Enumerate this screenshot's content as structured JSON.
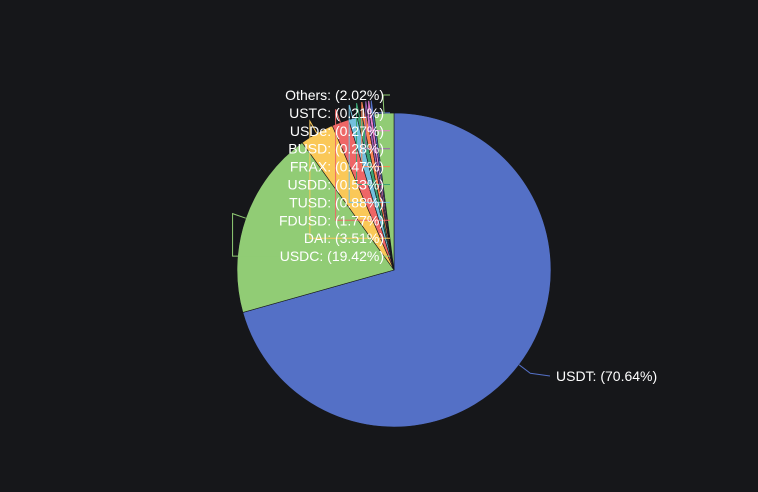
{
  "chart_data": {
    "type": "pie",
    "title": "",
    "start_angle_deg": 0,
    "direction": "clockwise",
    "slices": [
      {
        "name": "USDT",
        "value": 70.64,
        "label": "USDT: (70.64%)",
        "color": "#5470c6"
      },
      {
        "name": "USDC",
        "value": 19.42,
        "label": "USDC: (19.42%)",
        "color": "#91cc75"
      },
      {
        "name": "DAI",
        "value": 3.51,
        "label": "DAI: (3.51%)",
        "color": "#fac858"
      },
      {
        "name": "FDUSD",
        "value": 1.77,
        "label": "FDUSD: (1.77%)",
        "color": "#ee6666"
      },
      {
        "name": "TUSD",
        "value": 0.88,
        "label": "TUSD: (0.88%)",
        "color": "#73c0de"
      },
      {
        "name": "USDD",
        "value": 0.53,
        "label": "USDD: (0.53%)",
        "color": "#3ba272"
      },
      {
        "name": "FRAX",
        "value": 0.47,
        "label": "FRAX: (0.47%)",
        "color": "#fc8452"
      },
      {
        "name": "BUSD",
        "value": 0.28,
        "label": "BUSD: (0.28%)",
        "color": "#9a60b4"
      },
      {
        "name": "USDe",
        "value": 0.27,
        "label": "USDe: (0.27%)",
        "color": "#ea7ccc"
      },
      {
        "name": "USTC",
        "value": 0.21,
        "label": "USTC: (0.21%)",
        "color": "#5470c6"
      },
      {
        "name": "Others",
        "value": 2.02,
        "label": "Others: (2.02%)",
        "color": "#91cc75"
      }
    ]
  }
}
